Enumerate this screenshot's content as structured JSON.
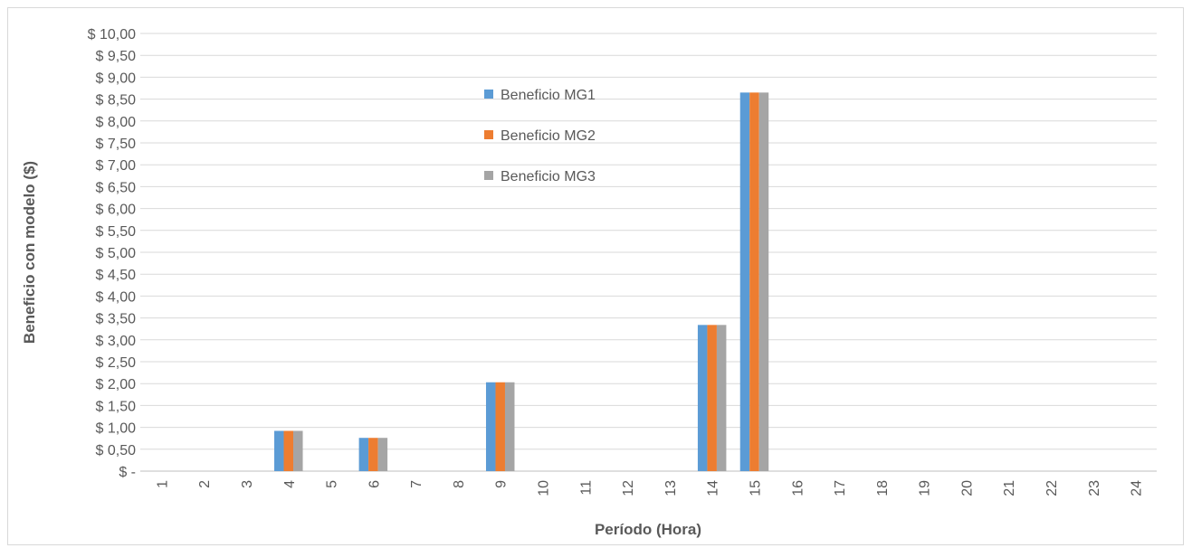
{
  "chart_data": {
    "type": "bar",
    "title": "",
    "xlabel": "Período (Hora)",
    "ylabel": "Beneficio con modelo ($)",
    "ylim": [
      0,
      10
    ],
    "grid": true,
    "legend_position": "top-center",
    "categories": [
      "1",
      "2",
      "3",
      "4",
      "5",
      "6",
      "7",
      "8",
      "9",
      "10",
      "11",
      "12",
      "13",
      "14",
      "15",
      "16",
      "17",
      "18",
      "19",
      "20",
      "21",
      "22",
      "23",
      "24"
    ],
    "y_tick_labels": [
      "$ -",
      "$ 0,50",
      "$ 1,00",
      "$ 1,50",
      "$ 2,00",
      "$ 2,50",
      "$ 3,00",
      "$ 3,50",
      "$ 4,00",
      "$ 4,50",
      "$ 5,00",
      "$ 5,50",
      "$ 6,00",
      "$ 6,50",
      "$ 7,00",
      "$ 7,50",
      "$ 8,00",
      "$ 8,50",
      "$ 9,00",
      "$ 9,50",
      "$ 10,00"
    ],
    "series": [
      {
        "name": "Beneficio MG1",
        "color": "#5b9bd5",
        "values": [
          0,
          0,
          0,
          0.92,
          0,
          0.76,
          0,
          0,
          2.03,
          0,
          0,
          0,
          0,
          3.34,
          8.65,
          0,
          0,
          0,
          0,
          0,
          0,
          0,
          0,
          0
        ]
      },
      {
        "name": "Beneficio MG2",
        "color": "#ed7d31",
        "values": [
          0,
          0,
          0,
          0.92,
          0,
          0.76,
          0,
          0,
          2.03,
          0,
          0,
          0,
          0,
          3.34,
          8.65,
          0,
          0,
          0,
          0,
          0,
          0,
          0,
          0,
          0
        ]
      },
      {
        "name": "Beneficio MG3",
        "color": "#a5a5a5",
        "values": [
          0,
          0,
          0,
          0.92,
          0,
          0.76,
          0,
          0,
          2.03,
          0,
          0,
          0,
          0,
          3.34,
          8.65,
          0,
          0,
          0,
          0,
          0,
          0,
          0,
          0,
          0
        ]
      }
    ]
  }
}
